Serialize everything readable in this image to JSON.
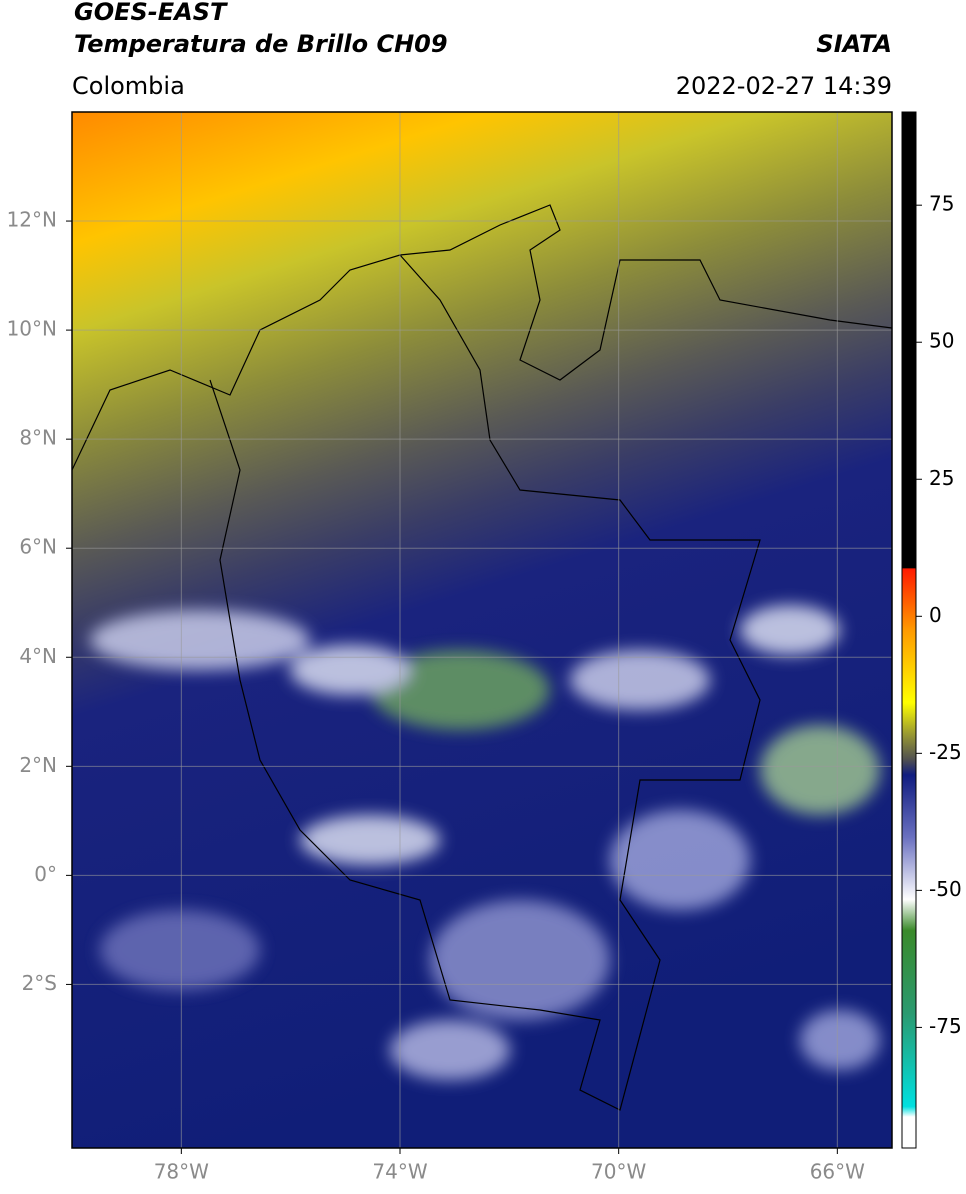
{
  "header": {
    "title": "GOES-EAST",
    "subtitle": "Temperatura de Brillo CH09",
    "source": "SIATA",
    "region": "Colombia",
    "datetime": "2022-02-27 14:39"
  },
  "map": {
    "xlim": [
      -80,
      -65
    ],
    "ylim": [
      -5,
      14
    ],
    "xticks": [
      {
        "value": -78,
        "label": "78°W"
      },
      {
        "value": -74,
        "label": "74°W"
      },
      {
        "value": -70,
        "label": "70°W"
      },
      {
        "value": -66,
        "label": "66°W"
      }
    ],
    "yticks": [
      {
        "value": 12,
        "label": "12°N"
      },
      {
        "value": 10,
        "label": "10°N"
      },
      {
        "value": 8,
        "label": "8°N"
      },
      {
        "value": 6,
        "label": "6°N"
      },
      {
        "value": 4,
        "label": "4°N"
      },
      {
        "value": 2,
        "label": "2°N"
      },
      {
        "value": 0,
        "label": "0°"
      },
      {
        "value": -2,
        "label": "2°S"
      }
    ],
    "grid": true
  },
  "colorbar": {
    "clim": [
      -97,
      92
    ],
    "ticks": [
      75,
      50,
      25,
      0,
      -25,
      -50,
      -75
    ]
  }
}
